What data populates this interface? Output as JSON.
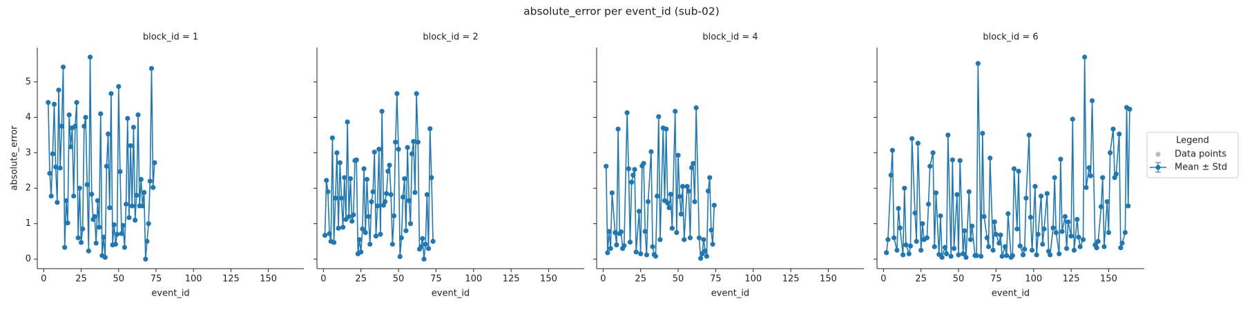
{
  "title": "absolute_error per event_id (sub-02)",
  "legend": {
    "title": "Legend",
    "entries": [
      {
        "name": "Data points",
        "color": "#bbbbbb"
      },
      {
        "name": "Mean ± Std",
        "color": "#1f77b4"
      }
    ]
  },
  "chart_data": [
    {
      "type": "line",
      "title": "block_id = 1",
      "x_label": "event_id",
      "y_label": "absolute_error",
      "color": "#1f77b4",
      "x": [
        3,
        4,
        5,
        6,
        7,
        8,
        9,
        10,
        11,
        12,
        13,
        14,
        15,
        16,
        17,
        18,
        19,
        20,
        21,
        22,
        23,
        24,
        25,
        26,
        27,
        28,
        29,
        30,
        31,
        32,
        33,
        34,
        35,
        36,
        37,
        38,
        39,
        40,
        41,
        42,
        43,
        44,
        45,
        46,
        47,
        48,
        49,
        50,
        51,
        52,
        53,
        54,
        55,
        56,
        57,
        58,
        59,
        60,
        61,
        62,
        63,
        64,
        65,
        66,
        67,
        68,
        69,
        70,
        71,
        72,
        73,
        74
      ],
      "values": [
        4.42,
        2.42,
        1.78,
        2.97,
        4.37,
        2.6,
        1.6,
        4.77,
        2.57,
        3.75,
        5.42,
        0.33,
        1.65,
        1.02,
        4.07,
        3.17,
        3.7,
        1.78,
        3.75,
        4.42,
        0.6,
        2.0,
        0.47,
        0.85,
        3.75,
        4.0,
        2.1,
        0.23,
        5.7,
        1.83,
        1.12,
        1.2,
        0.45,
        1.65,
        0.9,
        4.1,
        0.1,
        0.62,
        0.05,
        2.62,
        3.53,
        1.45,
        4.67,
        0.4,
        0.97,
        0.42,
        0.7,
        4.87,
        2.47,
        0.72,
        0.95,
        0.33,
        1.55,
        3.97,
        1.17,
        3.2,
        1.5,
        3.72,
        1.1,
        1.8,
        4.07,
        1.5,
        2.25,
        1.5,
        1.88,
        0.0,
        0.5,
        1.0,
        2.2,
        5.38,
        2.02,
        2.72
      ],
      "xlim": [
        -4.3,
        173.7
      ],
      "ylim": [
        -0.27,
        5.97
      ],
      "xticks": [
        0,
        25,
        50,
        75,
        100,
        125,
        150
      ],
      "yticks": [
        0,
        1,
        2,
        3,
        4,
        5
      ]
    },
    {
      "type": "line",
      "title": "block_id = 2",
      "x_label": "event_id",
      "color": "#1f77b4",
      "x": [
        1,
        2,
        3,
        4,
        5,
        6,
        7,
        8,
        9,
        10,
        11,
        12,
        13,
        14,
        15,
        16,
        17,
        18,
        19,
        20,
        21,
        22,
        23,
        24,
        25,
        26,
        27,
        28,
        29,
        30,
        31,
        32,
        33,
        34,
        35,
        36,
        37,
        38,
        39,
        40,
        41,
        42,
        43,
        44,
        45,
        46,
        47,
        48,
        49,
        50,
        51,
        52,
        53,
        54,
        55,
        56,
        57,
        58,
        59,
        60,
        61,
        62,
        63,
        64,
        65,
        66,
        67,
        68,
        69,
        70,
        71,
        72,
        73
      ],
      "values": [
        0.67,
        2.22,
        1.9,
        0.72,
        0.5,
        3.42,
        0.47,
        1.72,
        3.0,
        0.87,
        2.72,
        1.72,
        0.9,
        2.3,
        1.12,
        3.87,
        1.2,
        2.27,
        1.07,
        1.25,
        2.78,
        2.8,
        0.15,
        0.55,
        0.2,
        0.85,
        2.55,
        0.75,
        2.25,
        1.2,
        0.42,
        1.62,
        1.9,
        3.02,
        0.65,
        1.5,
        3.1,
        0.7,
        4.17,
        1.52,
        1.62,
        1.85,
        2.48,
        2.65,
        1.82,
        0.42,
        1.22,
        3.3,
        4.67,
        3.1,
        0.07,
        0.6,
        1.75,
        2.27,
        0.8,
        3.15,
        1.65,
        1.0,
        2.97,
        3.32,
        1.88,
        4.67,
        3.3,
        0.28,
        0.35,
        0.58,
        0.0,
        0.42,
        1.82,
        0.3,
        3.68,
        2.3,
        0.5
      ],
      "xlim": [
        -4.3,
        173.7
      ],
      "ylim": [
        -0.27,
        5.97
      ],
      "xticks": [
        0,
        25,
        50,
        75,
        100,
        125,
        150
      ],
      "yticks": [
        0,
        1,
        2,
        3,
        4,
        5
      ]
    },
    {
      "type": "line",
      "title": "block_id = 4",
      "x_label": "event_id",
      "color": "#1f77b4",
      "x": [
        2,
        3,
        4,
        5,
        6,
        8,
        9,
        10,
        11,
        12,
        13,
        14,
        16,
        17,
        18,
        19,
        20,
        21,
        22,
        24,
        25,
        26,
        27,
        28,
        29,
        30,
        32,
        33,
        34,
        35,
        36,
        37,
        38,
        40,
        41,
        42,
        43,
        44,
        45,
        46,
        48,
        49,
        50,
        51,
        52,
        53,
        54,
        56,
        57,
        58,
        59,
        60,
        61,
        62,
        64,
        65,
        66,
        67,
        68,
        69,
        70,
        71,
        72,
        73,
        74
      ],
      "values": [
        2.62,
        0.18,
        0.78,
        0.3,
        1.87,
        0.75,
        0.4,
        3.67,
        0.72,
        0.77,
        0.3,
        0.38,
        4.13,
        2.55,
        0.48,
        2.17,
        2.37,
        2.53,
        0.2,
        1.35,
        0.15,
        2.63,
        2.7,
        0.78,
        0.12,
        1.62,
        3.03,
        0.35,
        0.13,
        0.08,
        1.78,
        4.02,
        0.55,
        3.7,
        1.65,
        3.67,
        1.58,
        1.45,
        1.83,
        0.87,
        4.17,
        0.75,
        2.93,
        1.77,
        1.27,
        2.05,
        0.55,
        2.05,
        1.92,
        0.6,
        2.58,
        2.7,
        1.62,
        4.27,
        0.6,
        0.02,
        0.15,
        0.55,
        0.23,
        0.08,
        1.92,
        2.3,
        0.82,
        0.42,
        1.52
      ],
      "xlim": [
        -4.3,
        173.7
      ],
      "ylim": [
        -0.27,
        5.97
      ],
      "xticks": [
        0,
        25,
        50,
        75,
        100,
        125,
        150
      ],
      "yticks": [
        0,
        1,
        2,
        3,
        4,
        5
      ]
    },
    {
      "type": "line",
      "title": "block_id = 6",
      "x_label": "event_id",
      "color": "#1f77b4",
      "x": [
        2,
        3,
        5,
        6,
        7,
        9,
        10,
        11,
        13,
        14,
        15,
        17,
        18,
        19,
        21,
        22,
        23,
        25,
        26,
        27,
        29,
        30,
        31,
        33,
        34,
        35,
        37,
        38,
        39,
        41,
        42,
        43,
        45,
        46,
        47,
        49,
        50,
        51,
        53,
        54,
        55,
        57,
        58,
        59,
        61,
        62,
        63,
        65,
        66,
        67,
        69,
        70,
        71,
        73,
        74,
        75,
        77,
        78,
        79,
        81,
        82,
        83,
        85,
        86,
        87,
        89,
        90,
        91,
        93,
        94,
        95,
        97,
        98,
        99,
        101,
        102,
        103,
        105,
        106,
        107,
        109,
        110,
        111,
        113,
        114,
        115,
        117,
        118,
        119,
        121,
        122,
        123,
        125,
        126,
        127,
        129,
        130,
        131,
        133,
        134,
        135,
        137,
        138,
        139,
        141,
        142,
        143,
        145,
        146,
        147,
        149,
        150,
        151,
        153,
        154,
        155,
        157,
        158,
        159,
        161,
        162,
        163,
        164
      ],
      "values": [
        0.18,
        0.55,
        2.37,
        3.07,
        0.6,
        0.25,
        1.43,
        0.88,
        0.12,
        2.0,
        0.4,
        0.15,
        0.37,
        3.4,
        1.3,
        0.5,
        3.27,
        0.25,
        1.0,
        0.55,
        0.6,
        1.55,
        2.62,
        3.0,
        0.35,
        1.87,
        0.13,
        1.22,
        0.05,
        0.33,
        0.15,
        3.5,
        0.08,
        2.8,
        0.3,
        1.82,
        0.12,
        2.78,
        0.15,
        0.8,
        0.05,
        1.9,
        0.55,
        0.93,
        0.1,
        0.1,
        5.52,
        0.08,
        3.55,
        1.2,
        0.6,
        0.35,
        2.85,
        0.25,
        1.05,
        0.7,
        0.45,
        0.68,
        0.08,
        0.35,
        0.1,
        1.28,
        0.05,
        0.1,
        2.55,
        0.85,
        2.48,
        0.37,
        0.12,
        0.28,
        1.72,
        3.5,
        1.18,
        0.25,
        2.05,
        0.12,
        0.7,
        1.78,
        0.42,
        0.85,
        1.85,
        0.22,
        0.12,
        0.88,
        2.3,
        0.75,
        0.15,
        2.82,
        0.78,
        1.2,
        0.3,
        1.05,
        0.65,
        3.95,
        0.25,
        1.12,
        0.62,
        0.35,
        0.55,
        5.7,
        2.02,
        2.58,
        2.35,
        4.47,
        0.4,
        0.32,
        0.5,
        1.48,
        2.3,
        0.35,
        1.62,
        0.75,
        3.0,
        3.67,
        2.3,
        2.4,
        3.53,
        0.32,
        0.45,
        0.75,
        4.28,
        1.5,
        4.23
      ],
      "xlim": [
        -4.3,
        173.7
      ],
      "ylim": [
        -0.27,
        5.97
      ],
      "xticks": [
        0,
        25,
        50,
        75,
        100,
        125,
        150
      ],
      "yticks": [
        0,
        1,
        2,
        3,
        4,
        5
      ]
    }
  ]
}
